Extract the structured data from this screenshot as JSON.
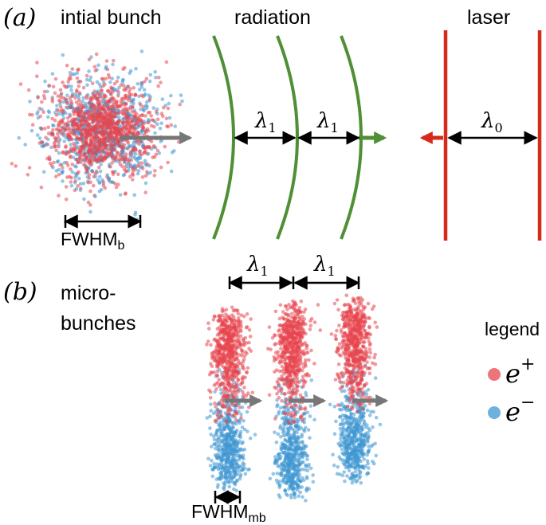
{
  "panel_a": {
    "label": "(a)",
    "titles": {
      "bunch": "intial bunch",
      "radiation": "radiation",
      "laser": "laser"
    },
    "fwhm_b": {
      "main": "FWHM",
      "sub": "b"
    },
    "lambda1_a": {
      "main": "λ",
      "sub": "1"
    },
    "lambda1_b": {
      "main": "λ",
      "sub": "1"
    },
    "lambda0": {
      "main": "λ",
      "sub": "0"
    }
  },
  "panel_b": {
    "label": "(b)",
    "title_line1": "micro-",
    "title_line2": "bunches",
    "lambda1_a": {
      "main": "λ",
      "sub": "1"
    },
    "lambda1_b": {
      "main": "λ",
      "sub": "1"
    },
    "fwhm_mb": {
      "main": "FWHM",
      "sub": "mb"
    }
  },
  "legend": {
    "title": "legend",
    "items": [
      {
        "symbol": "e",
        "sup": "+",
        "color": "#e8454f"
      },
      {
        "symbol": "e",
        "sup": "−",
        "color": "#3f97d2"
      }
    ]
  },
  "colors": {
    "positron": "#e8454f",
    "electron": "#3f97d2",
    "radiation": "#4f8f35",
    "laser": "#d52a1c",
    "arrow_grey": "#777777",
    "dimension": "#000000"
  }
}
